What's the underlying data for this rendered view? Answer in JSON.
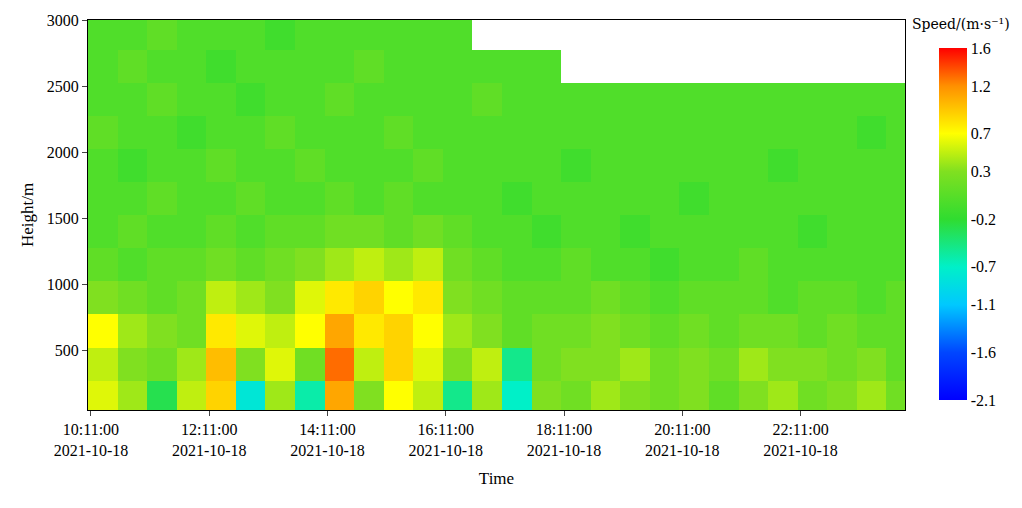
{
  "chart_data": {
    "type": "heatmap",
    "x_label": "Time",
    "y_label": "Height/m",
    "x": [
      "2021-10-18 10:23:00",
      "2021-10-18 10:53:00",
      "2021-10-18 11:23:00",
      "2021-10-18 11:53:00",
      "2021-10-18 12:23:00",
      "2021-10-18 12:53:00",
      "2021-10-18 13:23:00",
      "2021-10-18 13:53:00",
      "2021-10-18 14:23:00",
      "2021-10-18 14:53:00",
      "2021-10-18 15:23:00",
      "2021-10-18 15:53:00",
      "2021-10-18 16:23:00",
      "2021-10-18 16:53:00",
      "2021-10-18 17:23:00",
      "2021-10-18 17:53:00",
      "2021-10-18 18:23:00",
      "2021-10-18 18:53:00",
      "2021-10-18 19:23:00",
      "2021-10-18 19:53:00",
      "2021-10-18 20:23:00",
      "2021-10-18 20:53:00",
      "2021-10-18 21:23:00",
      "2021-10-18 21:53:00",
      "2021-10-18 22:23:00",
      "2021-10-18 22:53:00",
      "2021-10-18 23:23:00",
      "2021-10-18 23:53:00"
    ],
    "y": [
      150,
      400,
      650,
      900,
      1150,
      1400,
      1650,
      1900,
      2150,
      2400,
      2650,
      2900
    ],
    "z": [
      [
        0.6,
        0.4,
        -0.3,
        0.5,
        0.9,
        -0.8,
        0.4,
        -0.6,
        1.1,
        0.3,
        0.7,
        0.5,
        -0.5,
        0.4,
        -0.7,
        0.3,
        0.2,
        0.4,
        0.3,
        0.2,
        0.3,
        0.1,
        0.3,
        0.4,
        0.2,
        0.3,
        0.4,
        0.2
      ],
      [
        0.5,
        0.3,
        0.2,
        0.4,
        1.0,
        0.3,
        0.6,
        0.2,
        1.3,
        0.5,
        0.9,
        0.6,
        0.3,
        0.5,
        -0.5,
        0.2,
        0.3,
        0.3,
        0.4,
        0.2,
        0.3,
        0.2,
        0.4,
        0.3,
        0.3,
        0.2,
        0.3,
        0.1
      ],
      [
        0.7,
        0.4,
        0.3,
        0.2,
        0.8,
        0.6,
        0.5,
        0.7,
        1.1,
        0.8,
        0.9,
        0.7,
        0.4,
        0.3,
        0.1,
        0.2,
        0.2,
        0.3,
        0.2,
        0.1,
        0.2,
        0.1,
        0.2,
        0.2,
        0.1,
        0.2,
        0.1,
        0.1
      ],
      [
        0.3,
        0.2,
        0.1,
        0.2,
        0.5,
        0.4,
        0.3,
        0.6,
        0.8,
        0.9,
        0.7,
        0.8,
        0.3,
        0.2,
        0.1,
        0.1,
        0.1,
        0.2,
        0.1,
        0,
        0.1,
        0.1,
        0.1,
        0,
        0.1,
        0.1,
        0,
        0.1
      ],
      [
        0.1,
        0,
        0.1,
        0.1,
        0.2,
        0.1,
        0.2,
        0.3,
        0.4,
        0.5,
        0.4,
        0.5,
        0.2,
        0.1,
        0,
        0,
        0.1,
        0,
        0,
        -0.1,
        0,
        0,
        0.1,
        0,
        0,
        0,
        0,
        0
      ],
      [
        0,
        0.1,
        0,
        0,
        0.1,
        0,
        0.1,
        0.1,
        0.2,
        0.2,
        0.1,
        0.2,
        0.1,
        0,
        0,
        -0.1,
        0,
        0,
        -0.1,
        0,
        0,
        0,
        0,
        0,
        -0.1,
        0,
        0,
        0
      ],
      [
        0,
        0,
        0.1,
        0,
        0,
        0.1,
        0,
        0,
        0.1,
        0,
        0.1,
        0,
        0,
        0,
        -0.1,
        0,
        0,
        0,
        0,
        0,
        -0.1,
        0,
        0,
        0,
        0,
        0,
        0,
        0
      ],
      [
        0,
        -0.1,
        0,
        0,
        0.1,
        0,
        0,
        0.1,
        0,
        0,
        0,
        0.1,
        0,
        0,
        0,
        0,
        -0.1,
        0,
        0,
        0,
        0,
        0,
        0,
        -0.1,
        0,
        0,
        0,
        0
      ],
      [
        0.1,
        0,
        0,
        -0.1,
        0,
        0,
        0.1,
        0,
        0,
        0,
        0.1,
        0,
        0,
        0,
        0,
        0,
        0,
        0,
        0,
        0,
        0,
        0,
        0,
        0,
        0,
        0,
        -0.1,
        0
      ],
      [
        0,
        0,
        0.1,
        0,
        0,
        -0.1,
        0,
        0,
        0.1,
        0,
        0,
        0,
        0,
        0.1,
        0,
        0,
        0,
        0,
        0,
        0,
        0,
        0,
        0,
        0,
        0,
        0,
        0,
        0
      ],
      [
        0,
        0.1,
        0,
        0,
        -0.1,
        0,
        0,
        0,
        0,
        0.1,
        0,
        0,
        0,
        0,
        0,
        0,
        null,
        null,
        null,
        null,
        null,
        null,
        null,
        null,
        null,
        null,
        null,
        null
      ],
      [
        0,
        0,
        0.1,
        0,
        0,
        0,
        -0.1,
        0,
        0,
        0,
        0,
        0,
        0,
        null,
        null,
        null,
        null,
        null,
        null,
        null,
        null,
        null,
        null,
        null,
        null,
        null,
        null,
        null
      ]
    ],
    "xlim": [
      "2021-10-18 10:08:00",
      "2021-10-18 23:57:00"
    ],
    "xticks": [
      {
        "value": "2021-10-18 10:11:00",
        "label": "10:11:00\n2021-10-18"
      },
      {
        "value": "2021-10-18 12:11:00",
        "label": "12:11:00\n2021-10-18"
      },
      {
        "value": "2021-10-18 14:11:00",
        "label": "14:11:00\n2021-10-18"
      },
      {
        "value": "2021-10-18 16:11:00",
        "label": "16:11:00\n2021-10-18"
      },
      {
        "value": "2021-10-18 18:11:00",
        "label": "18:11:00\n2021-10-18"
      },
      {
        "value": "2021-10-18 20:11:00",
        "label": "20:11:00\n2021-10-18"
      },
      {
        "value": "2021-10-18 22:11:00",
        "label": "22:11:00\n2021-10-18"
      }
    ],
    "ylim": [
      50,
      3000
    ],
    "yticks": [
      500,
      1000,
      1500,
      2000,
      2500,
      3000
    ],
    "colorbar": {
      "title": "Speed/(m·s⁻¹)",
      "range": [
        -2.1,
        1.6
      ],
      "ticks": [
        1.6,
        1.2,
        0.7,
        0.3,
        -0.2,
        -0.7,
        -1.1,
        -1.6,
        -2.1
      ]
    }
  }
}
